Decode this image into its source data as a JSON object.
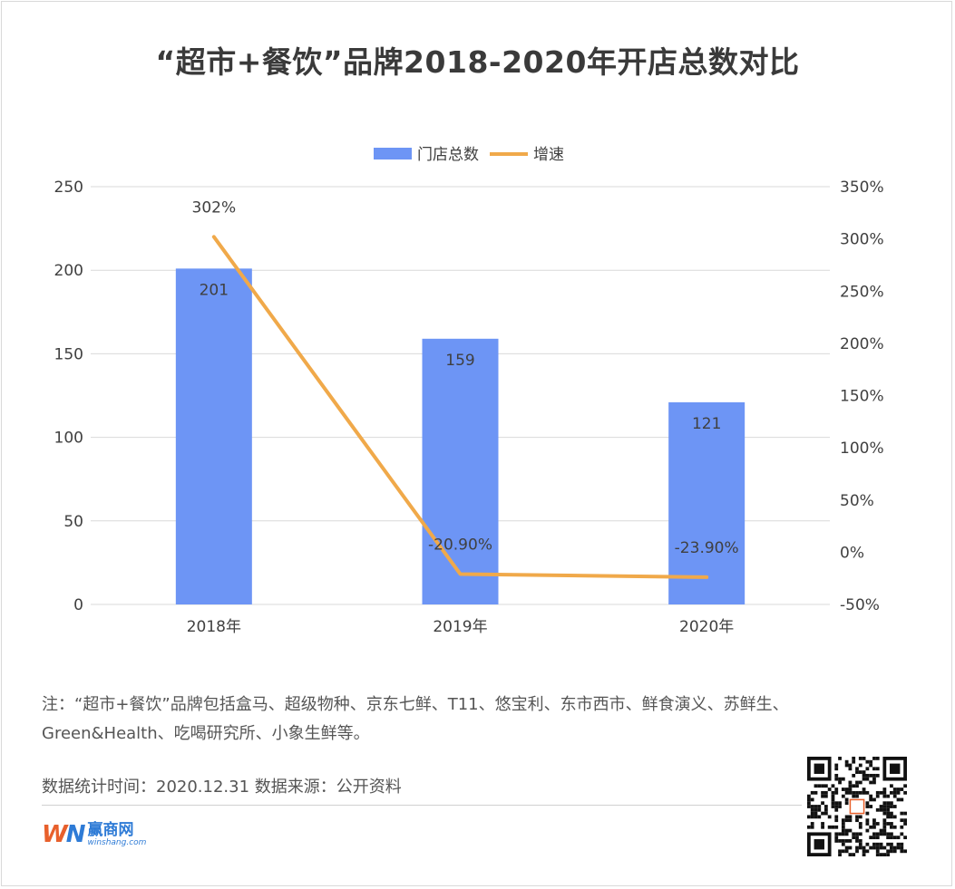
{
  "title": "“超市+餐饮”品牌2018-2020年开店总数对比",
  "note": "注：“超市+餐饮”品牌包括盒马、超级物种、京东七鲜、T11、悠宝利、东市西市、鲜食演义、苏鲜生、Green&Health、吃喝研究所、小象生鲜等。",
  "source": "数据统计时间：2020.12.31  数据来源：公开资料",
  "logo": {
    "mark": "W",
    "mark_n": "N",
    "name_cn": "赢商网",
    "name_en": "winshang.com"
  },
  "colors": {
    "bar": "#6d95f5",
    "line": "#f0a94a",
    "grid": "#d9d9d9",
    "text": "#404040"
  },
  "chart_data": {
    "type": "bar",
    "categories": [
      "2018年",
      "2019年",
      "2020年"
    ],
    "series": [
      {
        "name": "门店总数",
        "type": "bar",
        "axis": "left",
        "values": [
          201,
          159,
          121
        ],
        "labels": [
          "201",
          "159",
          "121"
        ]
      },
      {
        "name": "增速",
        "type": "line",
        "axis": "right",
        "values": [
          302,
          -20.9,
          -23.9
        ],
        "labels": [
          "302%",
          "-20.90%",
          "-23.90%"
        ]
      }
    ],
    "ylim_left": [
      0,
      250
    ],
    "yticks_left": [
      "0",
      "50",
      "100",
      "150",
      "200",
      "250"
    ],
    "ylim_right": [
      -50,
      350
    ],
    "yticks_right": [
      "-50%",
      "0%",
      "50%",
      "100%",
      "150%",
      "200%",
      "250%",
      "300%",
      "350%"
    ],
    "grid": true,
    "legend": "top"
  }
}
